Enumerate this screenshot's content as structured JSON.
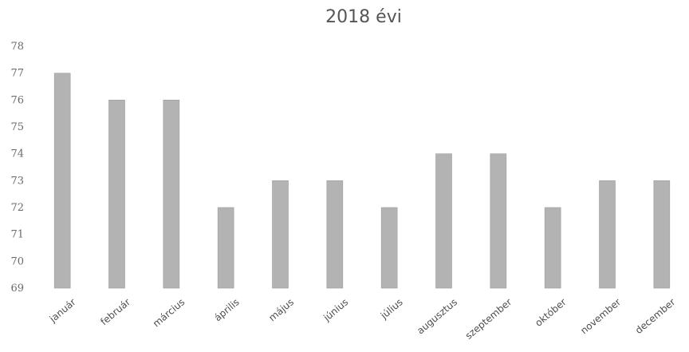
{
  "chart_data": {
    "type": "bar",
    "title": "2018 évi",
    "xlabel": "",
    "ylabel": "",
    "categories": [
      "január",
      "február",
      "március",
      "április",
      "május",
      "június",
      "július",
      "augusztus",
      "szeptember",
      "október",
      "november",
      "december"
    ],
    "values": [
      77,
      76,
      76,
      72,
      73,
      73,
      72,
      74,
      74,
      72,
      73,
      73
    ],
    "ylim": [
      69,
      78
    ],
    "yticks": [
      69,
      70,
      71,
      72,
      73,
      74,
      75,
      76,
      77,
      78
    ],
    "grid": false,
    "legend": "none",
    "bar_color": "#b3b3b3"
  }
}
